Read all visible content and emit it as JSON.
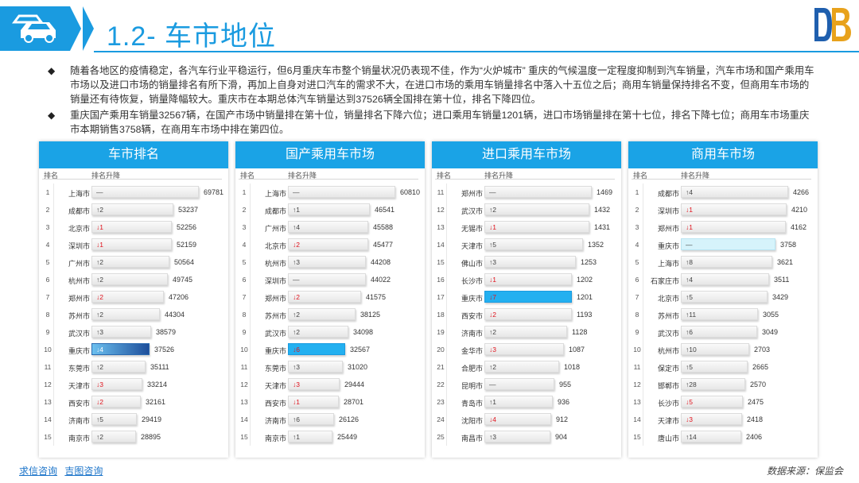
{
  "header": {
    "title": "1.2- 车市地位",
    "car_icon": "car-icon",
    "brand_logo": "db-logo"
  },
  "bullets": [
    "随着各地区的疫情稳定，各汽车行业平稳运行，但6月重庆车市整个销量状况仍表现不佳，作为“火炉城市” 重庆的气候温度一定程度抑制到汽车销量，汽车市场和国产乘用车市场以及进口市场的销量排名有所下滑，再加上自身对进口汽车的需求不大，在进口市场的乘用车销量排名中落入十五位之后；商用车销量保持排名不变，但商用车市场的销量还有待恢复，销量降幅较大。重庆市在本期总体汽车销量达到37526辆全国排在第十位，排名下降四位。",
    "重庆国产乘用车销量32567辆，在国产市场中销量排在第十位，销量排名下降六位；进口乘用车销量1201辆，进口市场销量排在第十七位，排名下降七位；商用车市场重庆市本期销售3758辆，在商用车市场中排在第四位。"
  ],
  "colors": {
    "accent": "#1a9be0",
    "panel_header": "#1aa3e6",
    "down": "#e0141e"
  },
  "columns": {
    "rank": "排名",
    "change": "排名升降"
  },
  "panels": [
    {
      "title": "车市排名",
      "rows": [
        {
          "rank": "1",
          "city": "上海市",
          "change": "—",
          "dir": "same",
          "value": "69781",
          "num": 69781
        },
        {
          "rank": "2",
          "city": "成都市",
          "change": "↑2",
          "dir": "up",
          "value": "53237",
          "num": 53237
        },
        {
          "rank": "3",
          "city": "北京市",
          "change": "↓1",
          "dir": "down",
          "value": "52256",
          "num": 52256
        },
        {
          "rank": "4",
          "city": "深圳市",
          "change": "↓1",
          "dir": "down",
          "value": "52159",
          "num": 52159
        },
        {
          "rank": "5",
          "city": "广州市",
          "change": "↑2",
          "dir": "up",
          "value": "50564",
          "num": 50564
        },
        {
          "rank": "6",
          "city": "杭州市",
          "change": "↑2",
          "dir": "up",
          "value": "49745",
          "num": 49745
        },
        {
          "rank": "7",
          "city": "郑州市",
          "change": "↓2",
          "dir": "down",
          "value": "47206",
          "num": 47206
        },
        {
          "rank": "8",
          "city": "苏州市",
          "change": "↑2",
          "dir": "up",
          "value": "44304",
          "num": 44304
        },
        {
          "rank": "9",
          "city": "武汉市",
          "change": "↑3",
          "dir": "up",
          "value": "38579",
          "num": 38579
        },
        {
          "rank": "10",
          "city": "重庆市",
          "change": "↓4",
          "dir": "down",
          "value": "37526",
          "num": 37526,
          "hl": "hl1"
        },
        {
          "rank": "11",
          "city": "东莞市",
          "change": "↑2",
          "dir": "up",
          "value": "35111",
          "num": 35111
        },
        {
          "rank": "12",
          "city": "天津市",
          "change": "↓3",
          "dir": "down",
          "value": "33214",
          "num": 33214
        },
        {
          "rank": "13",
          "city": "西安市",
          "change": "↓2",
          "dir": "down",
          "value": "32161",
          "num": 32161
        },
        {
          "rank": "14",
          "city": "济南市",
          "change": "↑5",
          "dir": "up",
          "value": "29419",
          "num": 29419
        },
        {
          "rank": "15",
          "city": "南京市",
          "change": "↑2",
          "dir": "up",
          "value": "28895",
          "num": 28895
        }
      ]
    },
    {
      "title": "国产乘用车市场",
      "rows": [
        {
          "rank": "1",
          "city": "上海市",
          "change": "—",
          "dir": "same",
          "value": "60810",
          "num": 60810
        },
        {
          "rank": "2",
          "city": "成都市",
          "change": "↑1",
          "dir": "up",
          "value": "46541",
          "num": 46541
        },
        {
          "rank": "3",
          "city": "广州市",
          "change": "↑4",
          "dir": "up",
          "value": "45588",
          "num": 45588
        },
        {
          "rank": "4",
          "city": "北京市",
          "change": "↓2",
          "dir": "down",
          "value": "45477",
          "num": 45477
        },
        {
          "rank": "5",
          "city": "杭州市",
          "change": "↑3",
          "dir": "up",
          "value": "44208",
          "num": 44208
        },
        {
          "rank": "6",
          "city": "深圳市",
          "change": "—",
          "dir": "same",
          "value": "44022",
          "num": 44022
        },
        {
          "rank": "7",
          "city": "郑州市",
          "change": "↓2",
          "dir": "down",
          "value": "41575",
          "num": 41575
        },
        {
          "rank": "8",
          "city": "苏州市",
          "change": "↑2",
          "dir": "up",
          "value": "38125",
          "num": 38125
        },
        {
          "rank": "9",
          "city": "武汉市",
          "change": "↑2",
          "dir": "up",
          "value": "34098",
          "num": 34098
        },
        {
          "rank": "10",
          "city": "重庆市",
          "change": "↓6",
          "dir": "down",
          "value": "32567",
          "num": 32567,
          "hl": "hl2"
        },
        {
          "rank": "11",
          "city": "东莞市",
          "change": "↑3",
          "dir": "up",
          "value": "31020",
          "num": 31020
        },
        {
          "rank": "12",
          "city": "天津市",
          "change": "↓3",
          "dir": "down",
          "value": "29444",
          "num": 29444
        },
        {
          "rank": "13",
          "city": "西安市",
          "change": "↓1",
          "dir": "down",
          "value": "28701",
          "num": 28701
        },
        {
          "rank": "14",
          "city": "济南市",
          "change": "↑6",
          "dir": "up",
          "value": "26126",
          "num": 26126
        },
        {
          "rank": "15",
          "city": "南京市",
          "change": "↑1",
          "dir": "up",
          "value": "25449",
          "num": 25449
        }
      ]
    },
    {
      "title": "进口乘用车市场",
      "rows": [
        {
          "rank": "11",
          "city": "郑州市",
          "change": "—",
          "dir": "same",
          "value": "1469",
          "num": 1469
        },
        {
          "rank": "12",
          "city": "武汉市",
          "change": "↑2",
          "dir": "up",
          "value": "1432",
          "num": 1432
        },
        {
          "rank": "13",
          "city": "无锡市",
          "change": "↓1",
          "dir": "down",
          "value": "1431",
          "num": 1431
        },
        {
          "rank": "14",
          "city": "天津市",
          "change": "↑5",
          "dir": "up",
          "value": "1352",
          "num": 1352
        },
        {
          "rank": "15",
          "city": "佛山市",
          "change": "↑3",
          "dir": "up",
          "value": "1253",
          "num": 1253
        },
        {
          "rank": "16",
          "city": "长沙市",
          "change": "↓1",
          "dir": "down",
          "value": "1202",
          "num": 1202
        },
        {
          "rank": "17",
          "city": "重庆市",
          "change": "↓7",
          "dir": "down",
          "value": "1201",
          "num": 1201,
          "hl": "hl2"
        },
        {
          "rank": "18",
          "city": "西安市",
          "change": "↓2",
          "dir": "down",
          "value": "1193",
          "num": 1193
        },
        {
          "rank": "19",
          "city": "济南市",
          "change": "↑2",
          "dir": "up",
          "value": "1128",
          "num": 1128
        },
        {
          "rank": "20",
          "city": "金华市",
          "change": "↓3",
          "dir": "down",
          "value": "1087",
          "num": 1087
        },
        {
          "rank": "21",
          "city": "合肥市",
          "change": "↑2",
          "dir": "up",
          "value": "1018",
          "num": 1018
        },
        {
          "rank": "22",
          "city": "昆明市",
          "change": "—",
          "dir": "same",
          "value": "955",
          "num": 955
        },
        {
          "rank": "23",
          "city": "青岛市",
          "change": "↑1",
          "dir": "up",
          "value": "936",
          "num": 936
        },
        {
          "rank": "24",
          "city": "沈阳市",
          "change": "↓4",
          "dir": "down",
          "value": "912",
          "num": 912
        },
        {
          "rank": "25",
          "city": "南昌市",
          "change": "↑3",
          "dir": "up",
          "value": "904",
          "num": 904
        }
      ]
    },
    {
      "title": "商用车市场",
      "rows": [
        {
          "rank": "1",
          "city": "成都市",
          "change": "↑4",
          "dir": "up",
          "value": "4266",
          "num": 4266
        },
        {
          "rank": "2",
          "city": "深圳市",
          "change": "↓1",
          "dir": "down",
          "value": "4210",
          "num": 4210
        },
        {
          "rank": "3",
          "city": "郑州市",
          "change": "↓1",
          "dir": "down",
          "value": "4162",
          "num": 4162
        },
        {
          "rank": "4",
          "city": "重庆市",
          "change": "—",
          "dir": "same",
          "value": "3758",
          "num": 3758,
          "hl": "hl3"
        },
        {
          "rank": "5",
          "city": "上海市",
          "change": "↑8",
          "dir": "up",
          "value": "3621",
          "num": 3621
        },
        {
          "rank": "6",
          "city": "石家庄市",
          "change": "↑4",
          "dir": "up",
          "value": "3511",
          "num": 3511
        },
        {
          "rank": "7",
          "city": "北京市",
          "change": "↑5",
          "dir": "up",
          "value": "3429",
          "num": 3429
        },
        {
          "rank": "8",
          "city": "苏州市",
          "change": "↑11",
          "dir": "up",
          "value": "3055",
          "num": 3055
        },
        {
          "rank": "9",
          "city": "武汉市",
          "change": "↑6",
          "dir": "up",
          "value": "3049",
          "num": 3049
        },
        {
          "rank": "10",
          "city": "杭州市",
          "change": "↑10",
          "dir": "up",
          "value": "2703",
          "num": 2703
        },
        {
          "rank": "11",
          "city": "保定市",
          "change": "↑5",
          "dir": "up",
          "value": "2665",
          "num": 2665
        },
        {
          "rank": "12",
          "city": "邯郸市",
          "change": "↑28",
          "dir": "up",
          "value": "2570",
          "num": 2570
        },
        {
          "rank": "13",
          "city": "长沙市",
          "change": "↓5",
          "dir": "down",
          "value": "2475",
          "num": 2475
        },
        {
          "rank": "14",
          "city": "天津市",
          "change": "↓3",
          "dir": "down",
          "value": "2418",
          "num": 2418
        },
        {
          "rank": "15",
          "city": "唐山市",
          "change": "↑14",
          "dir": "up",
          "value": "2406",
          "num": 2406
        }
      ]
    }
  ],
  "footer": {
    "link1": "求信咨询",
    "link2": "吉图咨询",
    "source": "数据来源：保监会"
  }
}
